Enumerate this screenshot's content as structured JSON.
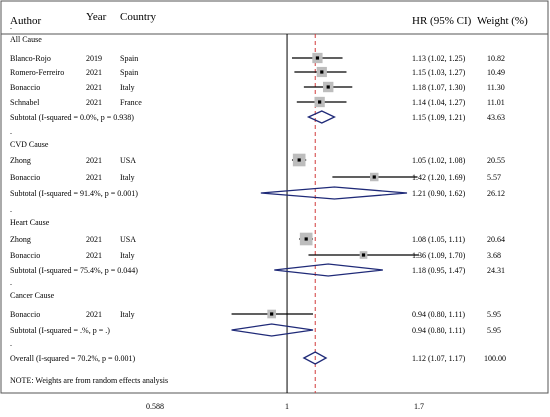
{
  "chart_data": {
    "type": "forest",
    "header": {
      "author": "Author",
      "year": "Year",
      "country": "Country",
      "hr": "HR (95% CI)",
      "weight": "Weight (%)"
    },
    "x_axis": {
      "scale": "log",
      "ticks": [
        {
          "value": 0.588,
          "label": "0.588"
        },
        {
          "value": 1,
          "label": "1"
        },
        {
          "value": 1.7,
          "label": "1.7"
        }
      ],
      "null_line": 1
    },
    "overall_line": 1.12,
    "groups": [
      {
        "name": "All Cause",
        "studies": [
          {
            "author": "Blanco-Rojo",
            "year": "2019",
            "country": "Spain",
            "hr": 1.13,
            "lo": 1.02,
            "hi": 1.25,
            "hr_text": "1.13 (1.02, 1.25)",
            "weight": "10.82",
            "w": 10.82
          },
          {
            "author": "Romero-Ferreiro",
            "year": "2021",
            "country": "Spain",
            "hr": 1.15,
            "lo": 1.03,
            "hi": 1.27,
            "hr_text": "1.15 (1.03, 1.27)",
            "weight": "10.49",
            "w": 10.49
          },
          {
            "author": "Bonaccio",
            "year": "2021",
            "country": "Italy",
            "hr": 1.18,
            "lo": 1.07,
            "hi": 1.3,
            "hr_text": "1.18 (1.07, 1.30)",
            "weight": "11.30",
            "w": 11.3
          },
          {
            "author": "Schnabel",
            "year": "2021",
            "country": "France",
            "hr": 1.14,
            "lo": 1.04,
            "hi": 1.27,
            "hr_text": "1.14 (1.04, 1.27)",
            "weight": "11.01",
            "w": 11.01
          }
        ],
        "subtotal": {
          "label": "Subtotal (I-squared = 0.0%, p = 0.938)",
          "hr": 1.15,
          "lo": 1.09,
          "hi": 1.21,
          "hr_text": "1.15 (1.09, 1.21)",
          "weight": "43.63"
        }
      },
      {
        "name": "CVD Cause",
        "studies": [
          {
            "author": "Zhong",
            "year": "2021",
            "country": "USA",
            "hr": 1.05,
            "lo": 1.02,
            "hi": 1.08,
            "hr_text": "1.05 (1.02, 1.08)",
            "weight": "20.55",
            "w": 20.55
          },
          {
            "author": "Bonaccio",
            "year": "2021",
            "country": "Italy",
            "hr": 1.42,
            "lo": 1.2,
            "hi": 1.69,
            "hr_text": "1.42 (1.20, 1.69)",
            "weight": "5.57",
            "w": 5.57
          }
        ],
        "subtotal": {
          "label": "Subtotal (I-squared = 91.4%, p = 0.001)",
          "hr": 1.21,
          "lo": 0.9,
          "hi": 1.62,
          "hr_text": "1.21 (0.90, 1.62)",
          "weight": "26.12"
        }
      },
      {
        "name": "Heart Cause",
        "studies": [
          {
            "author": "Zhong",
            "year": "2021",
            "country": "USA",
            "hr": 1.08,
            "lo": 1.05,
            "hi": 1.11,
            "hr_text": "1.08 (1.05, 1.11)",
            "weight": "20.64",
            "w": 20.64
          },
          {
            "author": "Bonaccio",
            "year": "2021",
            "country": "Italy",
            "hr": 1.36,
            "lo": 1.09,
            "hi": 1.7,
            "hr_text": "1.36 (1.09, 1.70)",
            "weight": "3.68",
            "w": 3.68
          }
        ],
        "subtotal": {
          "label": "Subtotal (I-squared = 75.4%, p = 0.044)",
          "hr": 1.18,
          "lo": 0.95,
          "hi": 1.47,
          "hr_text": "1.18 (0.95, 1.47)",
          "weight": "24.31"
        }
      },
      {
        "name": "Cancer Cause",
        "studies": [
          {
            "author": "Bonaccio",
            "year": "2021",
            "country": "Italy",
            "hr": 0.94,
            "lo": 0.8,
            "hi": 1.11,
            "hr_text": "0.94 (0.80, 1.11)",
            "weight": "5.95",
            "w": 5.95
          }
        ],
        "subtotal": {
          "label": "Subtotal (I-squared = .%, p = .)",
          "hr": 0.94,
          "lo": 0.8,
          "hi": 1.11,
          "hr_text": "0.94 (0.80, 1.11)",
          "weight": "5.95"
        }
      }
    ],
    "overall": {
      "label": "Overall (I-squared = 70.2%, p = 0.001)",
      "hr": 1.12,
      "lo": 1.07,
      "hi": 1.17,
      "hr_text": "1.12 (1.07, 1.17)",
      "weight": "100.00"
    },
    "note": "NOTE: Weights are from random effects analysis",
    "colors": {
      "diamond": "#1f2a78",
      "dashed": "#d23c3c",
      "box": "#bdbdbd",
      "line": "#000000",
      "border": "#555555"
    }
  }
}
